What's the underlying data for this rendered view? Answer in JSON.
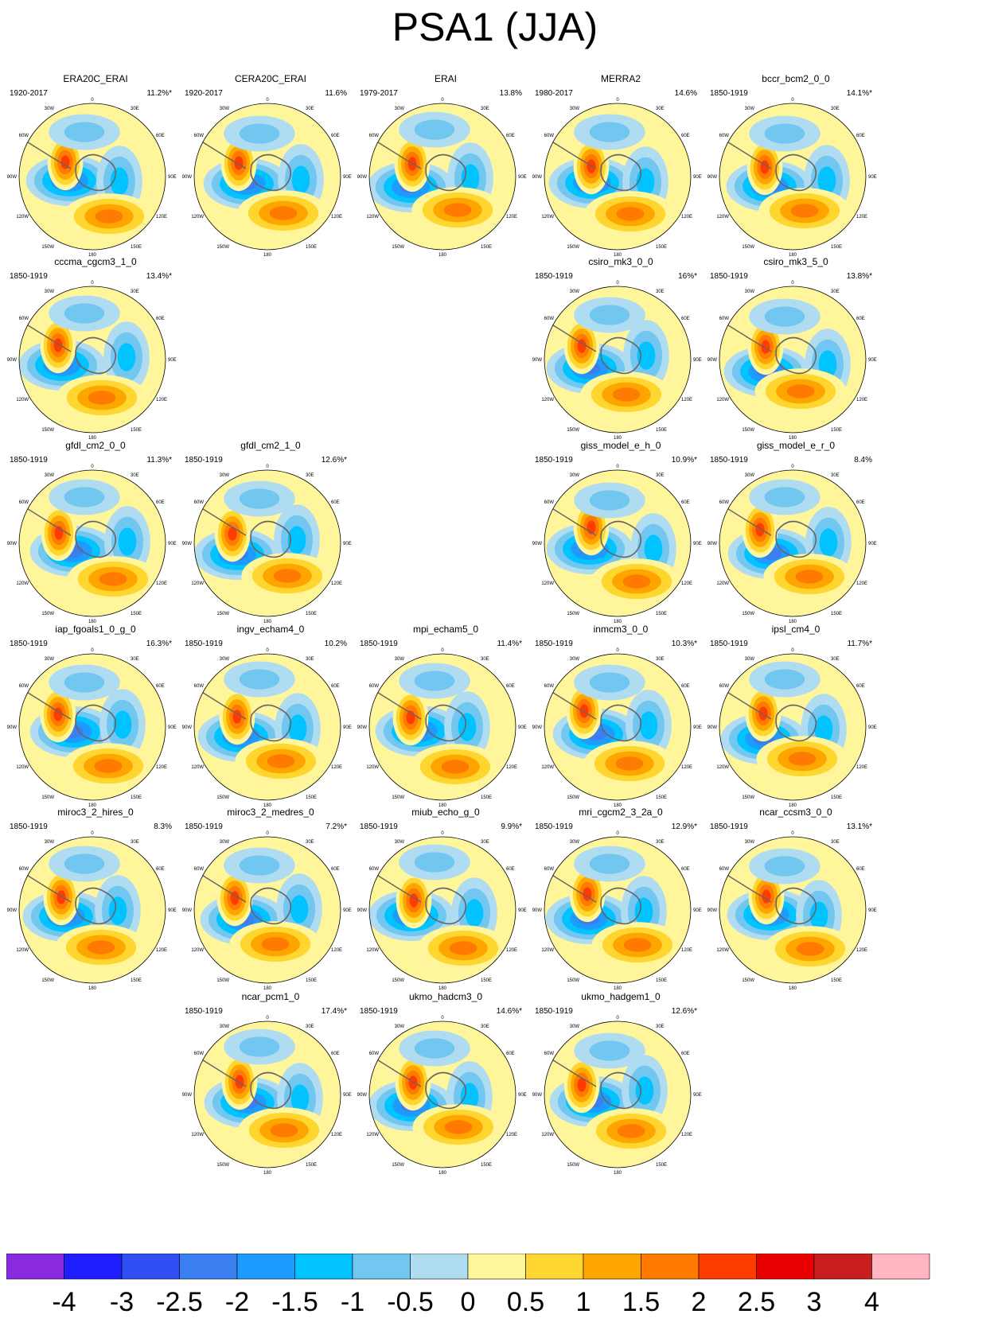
{
  "title": "PSA1 (JJA)",
  "colors": {
    "levels": [
      "#8a2be2",
      "#1e1eff",
      "#2f4ff2",
      "#3a7ef0",
      "#1e9bff",
      "#00c3ff",
      "#72c7f0",
      "#b0dcf2",
      "#fff59a",
      "#ffd530",
      "#ffa500",
      "#ff7a00",
      "#ff3c00",
      "#e80000",
      "#c81e1e",
      "#ffb6c1"
    ],
    "coast": "#666666",
    "frame": "#000000"
  },
  "colorbar": {
    "ticks": [
      "-4",
      "-3",
      "-2.5",
      "-2",
      "-1.5",
      "-1",
      "-0.5",
      "0",
      "0.5",
      "1",
      "1.5",
      "2",
      "2.5",
      "3",
      "4"
    ]
  },
  "map_labels": {
    "top": "0",
    "bottom": "180",
    "ne": "30E",
    "nw": "30W",
    "e1": "60E",
    "w1": "60W",
    "e2": "90E",
    "w2": "90W",
    "e3": "120E",
    "w3": "120W",
    "se": "150E",
    "sw": "150W"
  },
  "chart_data": {
    "type": "heatmap",
    "title": "PSA1 (JJA)",
    "description_note": "",
    "panels": [
      {
        "name": "ERA20C_ERAI",
        "period": "1920-2017",
        "variance": "11.2%*",
        "row": 0,
        "col": 0
      },
      {
        "name": "CERA20C_ERAI",
        "period": "1920-2017",
        "variance": "11.6%",
        "row": 0,
        "col": 1
      },
      {
        "name": "ERAI",
        "period": "1979-2017",
        "variance": "13.8%",
        "row": 0,
        "col": 2
      },
      {
        "name": "MERRA2",
        "period": "1980-2017",
        "variance": "14.6%",
        "row": 0,
        "col": 3
      },
      {
        "name": "bccr_bcm2_0_0",
        "period": "1850-1919",
        "variance": "14.1%*",
        "row": 0,
        "col": 4
      },
      {
        "name": "cccma_cgcm3_1_0",
        "period": "1850-1919",
        "variance": "13.4%*",
        "row": 1,
        "col": 0
      },
      {
        "name": "csiro_mk3_0_0",
        "period": "1850-1919",
        "variance": "16%*",
        "row": 1,
        "col": 3
      },
      {
        "name": "csiro_mk3_5_0",
        "period": "1850-1919",
        "variance": "13.8%*",
        "row": 1,
        "col": 4
      },
      {
        "name": "gfdl_cm2_0_0",
        "period": "1850-1919",
        "variance": "11.3%*",
        "row": 2,
        "col": 0
      },
      {
        "name": "gfdl_cm2_1_0",
        "period": "1850-1919",
        "variance": "12.6%*",
        "row": 2,
        "col": 1
      },
      {
        "name": "giss_model_e_h_0",
        "period": "1850-1919",
        "variance": "10.9%*",
        "row": 2,
        "col": 3
      },
      {
        "name": "giss_model_e_r_0",
        "period": "1850-1919",
        "variance": "8.4%",
        "row": 2,
        "col": 4
      },
      {
        "name": "iap_fgoals1_0_g_0",
        "period": "1850-1919",
        "variance": "16.3%*",
        "row": 3,
        "col": 0
      },
      {
        "name": "ingv_echam4_0",
        "period": "1850-1919",
        "variance": "10.2%",
        "row": 3,
        "col": 1
      },
      {
        "name": "mpi_echam5_0",
        "period": "1850-1919",
        "variance": "11.4%*",
        "row": 3,
        "col": 2
      },
      {
        "name": "inmcm3_0_0",
        "period": "1850-1919",
        "variance": "10.3%*",
        "row": 3,
        "col": 3
      },
      {
        "name": "ipsl_cm4_0",
        "period": "1850-1919",
        "variance": "11.7%*",
        "row": 3,
        "col": 4
      },
      {
        "name": "miroc3_2_hires_0",
        "period": "1850-1919",
        "variance": "8.3%",
        "row": 4,
        "col": 0
      },
      {
        "name": "miroc3_2_medres_0",
        "period": "1850-1919",
        "variance": "7.2%*",
        "row": 4,
        "col": 1
      },
      {
        "name": "miub_echo_g_0",
        "period": "1850-1919",
        "variance": "9.9%*",
        "row": 4,
        "col": 2
      },
      {
        "name": "mri_cgcm2_3_2a_0",
        "period": "1850-1919",
        "variance": "12.9%*",
        "row": 4,
        "col": 3
      },
      {
        "name": "ncar_ccsm3_0_0",
        "period": "1850-1919",
        "variance": "13.1%*",
        "row": 4,
        "col": 4
      },
      {
        "name": "ncar_pcm1_0",
        "period": "1850-1919",
        "variance": "17.4%*",
        "row": 5,
        "col": 1
      },
      {
        "name": "ukmo_hadcm3_0",
        "period": "1850-1919",
        "variance": "14.6%*",
        "row": 5,
        "col": 2
      },
      {
        "name": "ukmo_hadgem1_0",
        "period": "1850-1919",
        "variance": "12.6%*",
        "row": 5,
        "col": 3
      }
    ],
    "levels": [
      -4,
      -3,
      -2.5,
      -2,
      -1.5,
      -1,
      -0.5,
      0,
      0.5,
      1,
      1.5,
      2,
      2.5,
      3,
      4
    ],
    "projection": "south polar stereographic",
    "grid": false
  }
}
